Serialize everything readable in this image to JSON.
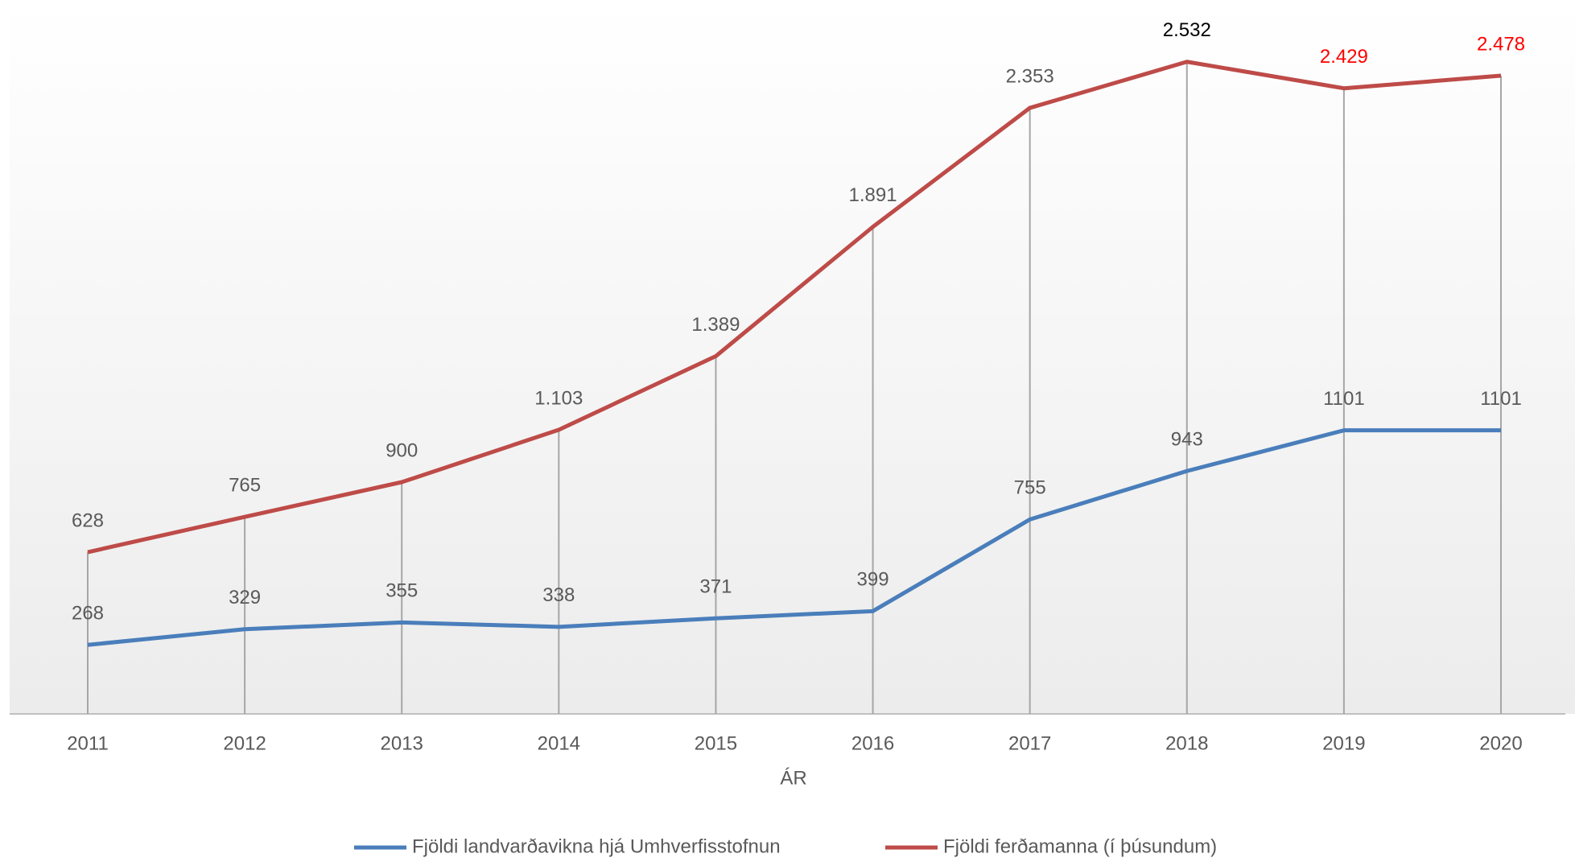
{
  "chart_data": {
    "type": "line",
    "x_label": "ÁR",
    "categories": [
      "2011",
      "2012",
      "2013",
      "2014",
      "2015",
      "2016",
      "2017",
      "2018",
      "2019",
      "2020"
    ],
    "ylim": [
      0,
      2600
    ],
    "drop_lines": true,
    "legend": "bottom",
    "series": [
      {
        "name": "Fjöldi landvarðavikna hjá Umhverfisstofnun",
        "color": "#4a7ebb",
        "values": [
          268,
          329,
          355,
          338,
          371,
          399,
          755,
          943,
          1101,
          1101
        ],
        "label_colors": [
          "#595959",
          "#595959",
          "#595959",
          "#595959",
          "#595959",
          "#595959",
          "#595959",
          "#595959",
          "#595959",
          "#595959"
        ]
      },
      {
        "name": "Fjöldi ferðamanna (í þúsundum)",
        "color": "#be4b48",
        "values": [
          628,
          765,
          900,
          1103,
          1389,
          1891,
          2353,
          2532,
          2429,
          2478
        ],
        "value_labels": [
          "628",
          "765",
          "900",
          "1.103",
          "1.389",
          "1.891",
          "2.353",
          "2.532",
          "2.429",
          "2.478"
        ],
        "label_colors": [
          "#595959",
          "#595959",
          "#595959",
          "#595959",
          "#595959",
          "#595959",
          "#595959",
          "#000000",
          "#ff0000",
          "#ff0000"
        ]
      }
    ]
  }
}
